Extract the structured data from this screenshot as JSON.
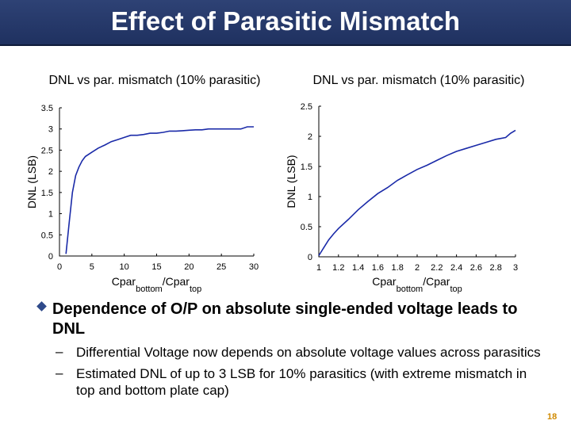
{
  "slide": {
    "title": "Effect of Parasitic Mismatch",
    "page_number": "18"
  },
  "bullets": {
    "main": "Dependence of O/P on absolute single-ended voltage leads to DNL",
    "sub_dash": "–",
    "sub": [
      "Differential Voltage now depends on absolute voltage values across parasitics",
      "Estimated DNL of up to 3 LSB for 10% parasitics (with extreme mismatch in top and bottom plate cap)"
    ]
  },
  "colors": {
    "line": "#1a2aa8",
    "bullet": "#2f4a8a",
    "title_bg": "#24386a"
  },
  "chart_data": [
    {
      "type": "line",
      "title": "DNL vs par. mismatch (10% parasitic)",
      "xlabel": {
        "main": "Cpar",
        "sub1": "bottom",
        "mid": "/Cpar",
        "sub2": "top"
      },
      "ylabel": "DNL (LSB)",
      "xlim": [
        0,
        30
      ],
      "ylim": [
        0,
        3.5
      ],
      "xticks": [
        0,
        5,
        10,
        15,
        20,
        25,
        30
      ],
      "xtick_labels": [
        "0",
        "5",
        "10",
        "15",
        "20",
        "25",
        "30"
      ],
      "yticks": [
        0,
        0.5,
        1,
        1.5,
        2,
        2.5,
        3,
        3.5
      ],
      "ytick_labels": [
        "0",
        "0.5",
        "1",
        "1.5",
        "2",
        "2.5",
        "3",
        "3.5"
      ],
      "series": [
        {
          "x": [
            1,
            1.5,
            2,
            2.5,
            3,
            3.5,
            4,
            5,
            6,
            7,
            8,
            9,
            10,
            11,
            12,
            13,
            14,
            15,
            16,
            17,
            18,
            19,
            20,
            21,
            22,
            23,
            24,
            25,
            26,
            27,
            28,
            29,
            30
          ],
          "y": [
            0.05,
            0.8,
            1.5,
            1.9,
            2.1,
            2.25,
            2.35,
            2.45,
            2.55,
            2.62,
            2.7,
            2.75,
            2.8,
            2.85,
            2.85,
            2.87,
            2.9,
            2.9,
            2.92,
            2.95,
            2.95,
            2.96,
            2.97,
            2.98,
            2.98,
            3.0,
            3.0,
            3.0,
            3.0,
            3.0,
            3.0,
            3.05,
            3.05
          ]
        }
      ]
    },
    {
      "type": "line",
      "title": "DNL vs par. mismatch (10% parasitic)",
      "xlabel": {
        "main": "Cpar",
        "sub1": "bottom",
        "mid": "/Cpar",
        "sub2": "top"
      },
      "ylabel": "DNL (LSB)",
      "xlim": [
        1,
        3
      ],
      "ylim": [
        0,
        2.5
      ],
      "xticks": [
        1,
        1.2,
        1.4,
        1.6,
        1.8,
        2,
        2.2,
        2.4,
        2.6,
        2.8,
        3
      ],
      "xtick_labels": [
        "1",
        "1.2",
        "1.4",
        "1.6",
        "1.8",
        "2",
        "2.2",
        "2.4",
        "2.6",
        "2.8",
        "3"
      ],
      "yticks": [
        0,
        0.5,
        1,
        1.5,
        2,
        2.5
      ],
      "ytick_labels": [
        "0",
        "0.5",
        "1",
        "1.5",
        "2",
        "2.5"
      ],
      "series": [
        {
          "x": [
            1,
            1.05,
            1.1,
            1.15,
            1.2,
            1.3,
            1.4,
            1.5,
            1.6,
            1.7,
            1.8,
            1.9,
            2.0,
            2.1,
            2.2,
            2.3,
            2.4,
            2.5,
            2.6,
            2.7,
            2.8,
            2.9,
            2.95,
            3.0
          ],
          "y": [
            0.02,
            0.15,
            0.28,
            0.38,
            0.47,
            0.62,
            0.78,
            0.92,
            1.05,
            1.15,
            1.27,
            1.36,
            1.45,
            1.52,
            1.6,
            1.68,
            1.75,
            1.8,
            1.85,
            1.9,
            1.95,
            1.98,
            2.05,
            2.1
          ]
        }
      ]
    }
  ]
}
